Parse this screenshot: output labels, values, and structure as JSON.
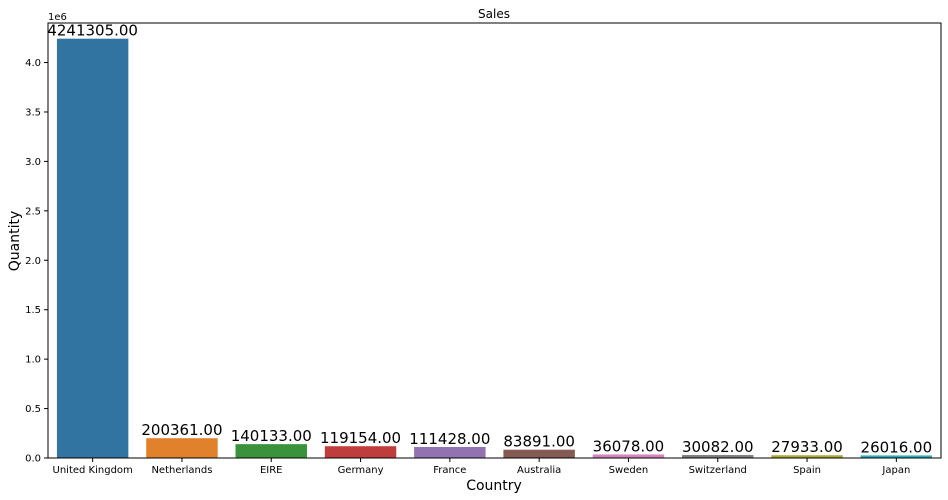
{
  "chart_data": {
    "type": "bar",
    "title": "Sales",
    "xlabel": "Country",
    "ylabel": "Quantity",
    "y_scale_label": "1e6",
    "categories": [
      "United Kingdom",
      "Netherlands",
      "EIRE",
      "Germany",
      "France",
      "Australia",
      "Sweden",
      "Switzerland",
      "Spain",
      "Japan"
    ],
    "values": [
      4241305,
      200361,
      140133,
      119154,
      111428,
      83891,
      36078,
      30082,
      27933,
      26016
    ],
    "data_labels": [
      "4241305.00",
      "200361.00",
      "140133.00",
      "119154.00",
      "111428.00",
      "83891.00",
      "36078.00",
      "30082.00",
      "27933.00",
      "26016.00"
    ],
    "colors": [
      "#3274a1",
      "#e1812c",
      "#3a923a",
      "#c03d3e",
      "#9372b2",
      "#845b53",
      "#d684bd",
      "#7f7f7f",
      "#a9aa35",
      "#2eabb8"
    ],
    "ylim": [
      0,
      4400000
    ],
    "yticks": [
      0,
      0.5,
      1.0,
      1.5,
      2.0,
      2.5,
      3.0,
      3.5,
      4.0
    ],
    "ytick_labels": [
      "0.0",
      "0.5",
      "1.0",
      "1.5",
      "2.0",
      "2.5",
      "3.0",
      "3.5",
      "4.0"
    ],
    "grid": false,
    "legend": "none"
  }
}
